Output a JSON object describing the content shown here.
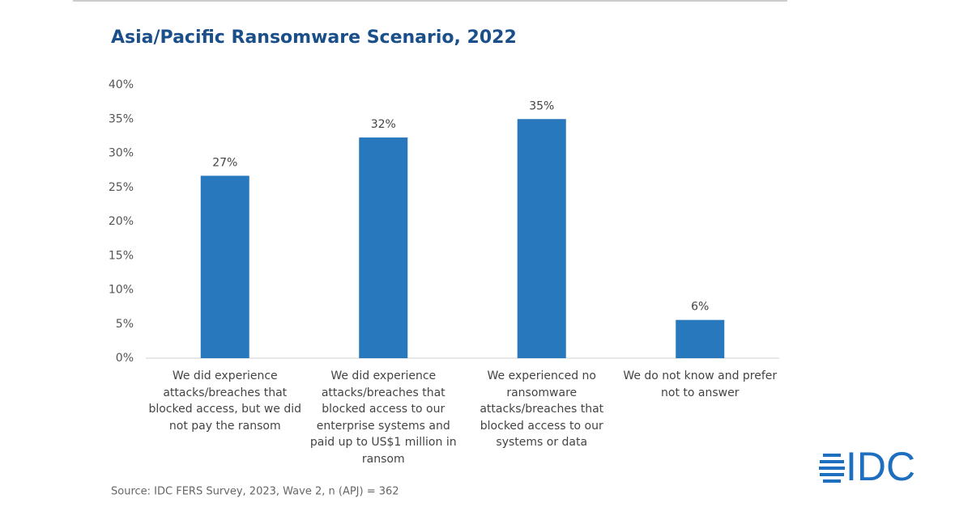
{
  "chart_data": {
    "type": "bar",
    "title": "Asia/Pacific Ransomware Scenario, 2022",
    "categories": [
      "We did experience attacks/breaches that blocked access, but we did not pay the ransom",
      "We did experience attacks/breaches that blocked access to our enterprise systems and paid up to US$1 million in ransom",
      "We experienced no ransomware attacks/breaches that blocked access to our systems or data",
      "We do not know and prefer not to answer"
    ],
    "values": [
      26.7,
      32.3,
      35,
      5.6
    ],
    "value_labels": [
      "27%",
      "32%",
      "35%",
      "6%"
    ],
    "color": "#2878be",
    "ylim": [
      0,
      40
    ],
    "yticks": [
      {
        "value": 0,
        "label": "0%"
      },
      {
        "value": 5,
        "label": "5%"
      },
      {
        "value": 10,
        "label": "10%"
      },
      {
        "value": 15,
        "label": "15%"
      },
      {
        "value": 20,
        "label": "20%"
      },
      {
        "value": 25,
        "label": "25%"
      },
      {
        "value": 30,
        "label": "30%"
      },
      {
        "value": 35,
        "label": "35%"
      },
      {
        "value": 40,
        "label": "40%"
      }
    ],
    "grid": false,
    "source": "Source: IDC FERS Survey, 2023, Wave 2, n (APJ) = 362",
    "logo": "IDC"
  }
}
